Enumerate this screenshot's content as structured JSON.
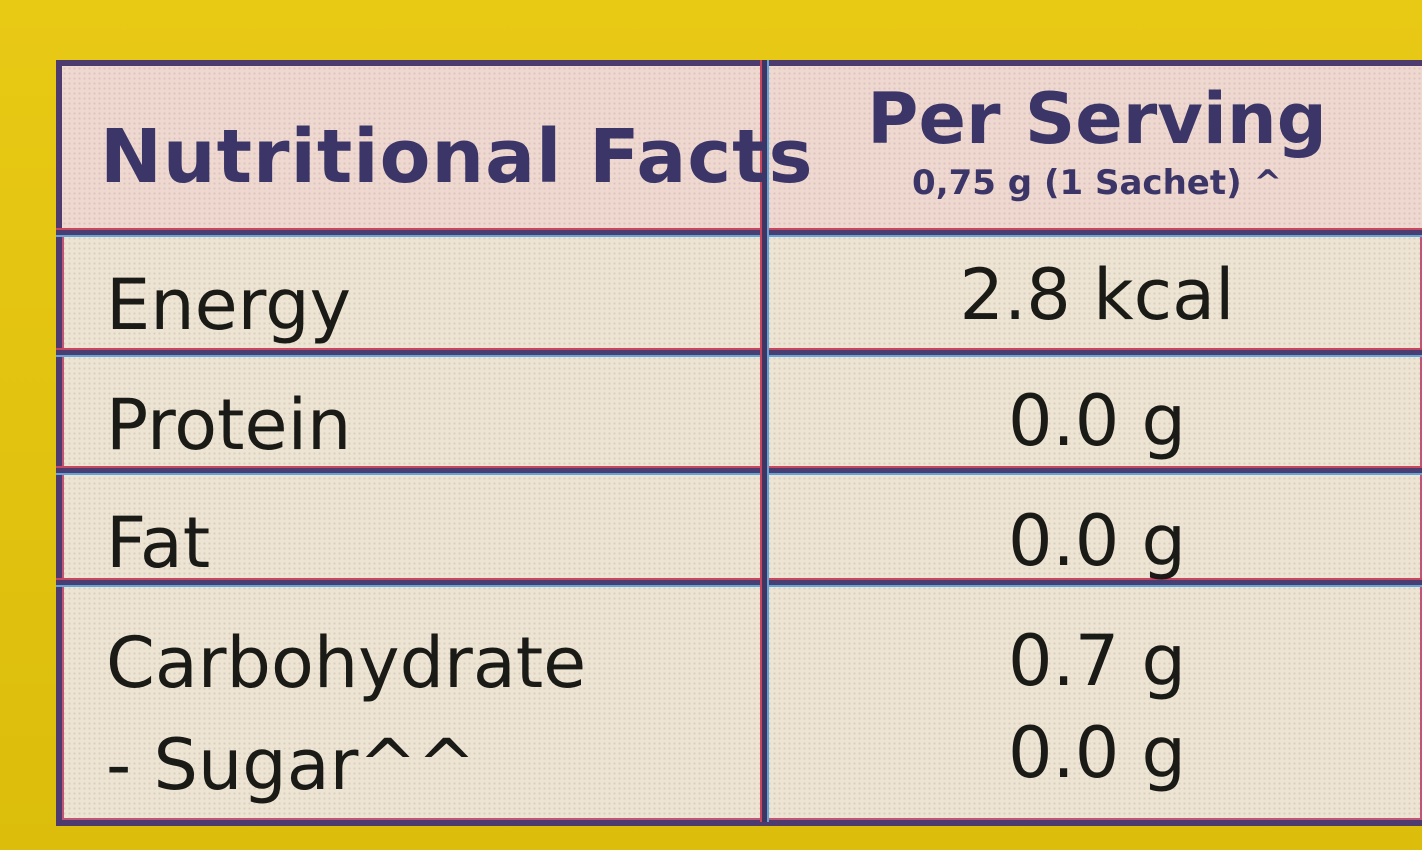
{
  "table": {
    "header": {
      "title": "Nutritional Facts",
      "per_serving": "Per Serving",
      "serving_size": "0,75 g (1 Sachet) ^"
    },
    "rows": [
      {
        "label": "Energy",
        "value": "2.8 kcal"
      },
      {
        "label": "Protein",
        "value": "0.0 g"
      },
      {
        "label": "Fat",
        "value": "0.0 g"
      },
      {
        "label": "Carbohydrate",
        "value": "0.7 g"
      },
      {
        "label": "- Sugar^^",
        "value": "0.0 g"
      }
    ]
  }
}
